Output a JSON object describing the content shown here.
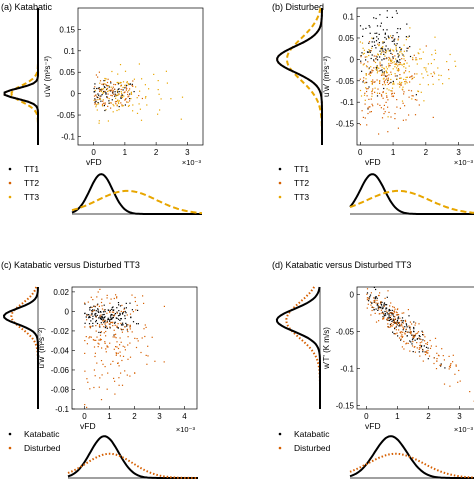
{
  "figure": {
    "colors": {
      "black": "#000000",
      "orange": "#d65f00",
      "gold": "#e8a600",
      "lightgold": "#f2c060",
      "axis": "#000000"
    }
  },
  "chart_data": [
    {
      "id": "a",
      "panel_title": "(a) Katabatic",
      "type": "scatter",
      "xlabel": "vFD",
      "ylabel": "u'w' (m²s⁻²)",
      "x_exponent": "×10⁻³",
      "xlim": [
        -0.5,
        3.5
      ],
      "ylim": [
        -0.12,
        0.2
      ],
      "xticks": [
        0,
        1,
        2,
        3
      ],
      "yticks": [
        -0.1,
        -0.05,
        0,
        0.05,
        0.1,
        0.15
      ],
      "ytick_labels": [
        "-0.1",
        "-0.05",
        "0",
        "0.05",
        "0.1",
        "0.15"
      ],
      "xtick_labels": [
        "0",
        "1",
        "2",
        "3"
      ],
      "legend": [
        "TT1",
        "TT2",
        "TT3"
      ],
      "series": [
        {
          "name": "TT1",
          "color": "#000000",
          "cloud": {
            "xc": 0.5,
            "sx": 0.45,
            "yc": 0.0,
            "sy": 0.015,
            "n": 70
          }
        },
        {
          "name": "TT2",
          "color": "#d65f00",
          "cloud": {
            "xc": 0.5,
            "sx": 0.5,
            "yc": 0.0,
            "sy": 0.02,
            "n": 80
          }
        },
        {
          "name": "TT3",
          "color": "#e8a600",
          "cloud": {
            "xc": 0.9,
            "sx": 0.7,
            "yc": 0.0,
            "sy": 0.03,
            "n": 110
          }
        }
      ],
      "side_kde": {
        "peak_y": 0.0,
        "width": 0.012
      },
      "bottom_kde": [
        {
          "name": "TT1",
          "color": "#000000",
          "mu": 0.4,
          "sd": 0.35
        },
        {
          "name": "TT3",
          "color": "#e8a600",
          "mu": 1.2,
          "sd": 0.9
        }
      ]
    },
    {
      "id": "b",
      "panel_title": "(b) Disturbed",
      "type": "scatter",
      "xlabel": "vFD",
      "ylabel": "u'w' (m²s⁻²)",
      "x_exponent": "×10⁻³",
      "xlim": [
        -0.1,
        3.5
      ],
      "ylim": [
        -0.2,
        0.12
      ],
      "xticks": [
        0,
        1,
        2,
        3
      ],
      "yticks": [
        -0.15,
        -0.1,
        -0.05,
        0,
        0.05,
        0.1
      ],
      "ytick_labels": [
        "-0.15",
        "-0.1",
        "-0.05",
        "0",
        "0.05",
        "0.1"
      ],
      "xtick_labels": [
        "0",
        "1",
        "2",
        "3"
      ],
      "legend": [
        "TT1",
        "TT2",
        "TT3"
      ],
      "series": [
        {
          "name": "TT1",
          "color": "#000000",
          "cloud": {
            "xc": 0.7,
            "sx": 0.45,
            "yc": 0.02,
            "sy": 0.04,
            "n": 140
          }
        },
        {
          "name": "TT2",
          "color": "#d65f00",
          "cloud": {
            "xc": 0.8,
            "sx": 0.6,
            "yc": -0.06,
            "sy": 0.045,
            "n": 180
          }
        },
        {
          "name": "TT3",
          "color": "#e8a600",
          "cloud": {
            "xc": 1.0,
            "sx": 0.8,
            "yc": -0.02,
            "sy": 0.04,
            "n": 200
          }
        }
      ],
      "side_kde": {
        "peak_y": 0.0,
        "width": 0.03
      },
      "bottom_kde": [
        {
          "name": "TT1",
          "color": "#000000",
          "mu": 0.55,
          "sd": 0.35
        },
        {
          "name": "TT3",
          "color": "#e8a600",
          "mu": 1.3,
          "sd": 0.9
        }
      ]
    },
    {
      "id": "c",
      "panel_title": "(c) Katabatic versus Disturbed TT3",
      "type": "scatter",
      "xlabel": "vFD",
      "ylabel": "u'w' (m²s⁻²)",
      "x_exponent": "×10⁻³",
      "xlim": [
        -0.5,
        4.5
      ],
      "ylim": [
        -0.1,
        0.025
      ],
      "xticks": [
        0,
        1,
        2,
        3,
        4
      ],
      "yticks": [
        -0.1,
        -0.08,
        -0.06,
        -0.04,
        -0.02,
        0,
        0.02
      ],
      "ytick_labels": [
        "-0.1",
        "-0.08",
        "-0.06",
        "-0.04",
        "-0.02",
        "0",
        "0.02"
      ],
      "xtick_labels": [
        "0",
        "1",
        "2",
        "3",
        "4"
      ],
      "legend": [
        "Katabatic",
        "Disturbed"
      ],
      "series": [
        {
          "name": "Katabatic",
          "color": "#000000",
          "cloud": {
            "xc": 0.9,
            "sx": 0.55,
            "yc": -0.006,
            "sy": 0.007,
            "n": 160
          }
        },
        {
          "name": "Disturbed",
          "color": "#d65f00",
          "cloud": {
            "xc": 1.1,
            "sx": 0.8,
            "yc": -0.025,
            "sy": 0.025,
            "n": 220
          }
        }
      ],
      "side_kde": {
        "peak_y": -0.005,
        "width": 0.008
      },
      "bottom_kde": [
        {
          "name": "Katabatic",
          "color": "#000000",
          "mu": 0.9,
          "sd": 0.55
        },
        {
          "name": "Disturbed",
          "color": "#d65f00",
          "mu": 1.1,
          "sd": 0.9
        }
      ]
    },
    {
      "id": "d",
      "panel_title": "(d) Katabatic versus Disturbed TT3",
      "type": "scatter",
      "xlabel": "vFD",
      "ylabel": "w'T' (K m/s)",
      "x_exponent": "×10⁻³",
      "xlim": [
        -0.3,
        3.5
      ],
      "ylim": [
        -0.155,
        0.01
      ],
      "xticks": [
        0,
        1,
        2,
        3
      ],
      "yticks": [
        -0.15,
        -0.1,
        -0.05,
        0
      ],
      "ytick_labels": [
        "-0.15",
        "-0.1",
        "-0.05",
        "0"
      ],
      "xtick_labels": [
        "0",
        "1",
        "2",
        "3"
      ],
      "legend": [
        "Katabatic",
        "Disturbed"
      ],
      "series": [
        {
          "name": "Katabatic",
          "color": "#000000",
          "trend": {
            "slope": -0.038,
            "xc": 0.9,
            "sx": 0.55,
            "sy": 0.008,
            "n": 170
          }
        },
        {
          "name": "Disturbed",
          "color": "#d65f00",
          "trend": {
            "slope": -0.038,
            "xc": 1.1,
            "sx": 0.85,
            "sy": 0.012,
            "n": 230
          }
        }
      ],
      "side_kde": {
        "peak_y": -0.035,
        "width": 0.015
      },
      "bottom_kde": [
        {
          "name": "Katabatic",
          "color": "#000000",
          "mu": 0.95,
          "sd": 0.5
        },
        {
          "name": "Disturbed",
          "color": "#d65f00",
          "mu": 1.1,
          "sd": 0.85
        }
      ]
    }
  ]
}
